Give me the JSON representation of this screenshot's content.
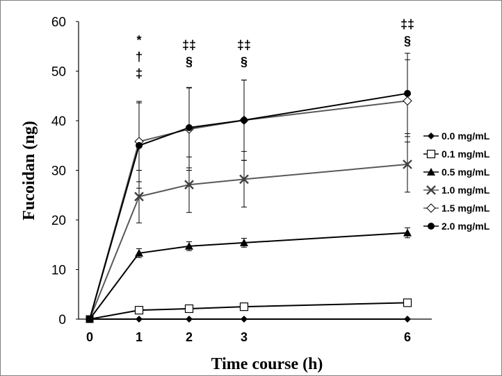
{
  "chart_data": {
    "type": "line",
    "title": "",
    "xlabel": "Time course (h)",
    "ylabel": "Fucoidan (ng)",
    "x": [
      0,
      1,
      2,
      3,
      6
    ],
    "x_tick_labels": [
      "0",
      "1",
      "2",
      "3",
      "6"
    ],
    "ylim": [
      0,
      60
    ],
    "y_ticks": [
      0,
      10,
      20,
      30,
      40,
      50,
      60
    ],
    "grid": false,
    "legend_position": "right",
    "series": [
      {
        "name": "0.0 mg/mL",
        "marker": "filled-diamond",
        "color": "#000000",
        "line_color": "#000000",
        "values": [
          0,
          0,
          0,
          0,
          0
        ],
        "errors": [
          0,
          0,
          0,
          0,
          0
        ]
      },
      {
        "name": "0.1 mg/mL",
        "marker": "open-square",
        "color": "#000000",
        "line_color": "#000000",
        "values": [
          0,
          1.8,
          2.1,
          2.5,
          3.3
        ],
        "errors": [
          0,
          0,
          0,
          0,
          0
        ]
      },
      {
        "name": "0.5 mg/mL",
        "marker": "filled-triangle",
        "color": "#000000",
        "line_color": "#000000",
        "values": [
          0,
          13.3,
          14.7,
          15.4,
          17.4
        ],
        "errors": [
          0,
          0.9,
          0.9,
          0.9,
          1.0
        ]
      },
      {
        "name": "1.0 mg/mL",
        "marker": "x-cross",
        "color": "#000000",
        "line_color": "#595959",
        "values": [
          0,
          24.7,
          27.1,
          28.2,
          31.2
        ],
        "errors": [
          0,
          5.3,
          5.6,
          5.6,
          5.6
        ]
      },
      {
        "name": "1.5 mg/mL",
        "marker": "open-diamond",
        "color": "#000000",
        "line_color": "#595959",
        "values": [
          0,
          35.8,
          38.3,
          40.1,
          44.0
        ],
        "errors": [
          0,
          8.1,
          8.3,
          8.1,
          8.3
        ]
      },
      {
        "name": "2.0 mg/mL",
        "marker": "filled-circle",
        "color": "#000000",
        "line_color": "#000000",
        "values": [
          0,
          35.0,
          38.6,
          40.1,
          45.5
        ],
        "errors": [
          0,
          8.6,
          8.1,
          8.1,
          8.1
        ]
      }
    ],
    "annotations": [
      {
        "x": 1,
        "lines": [
          "*",
          "†",
          "‡"
        ]
      },
      {
        "x": 2,
        "lines": [
          "‡‡",
          "§"
        ]
      },
      {
        "x": 3,
        "lines": [
          "‡‡",
          "§"
        ]
      },
      {
        "x": 6,
        "lines": [
          "‡‡",
          "§"
        ]
      }
    ]
  }
}
